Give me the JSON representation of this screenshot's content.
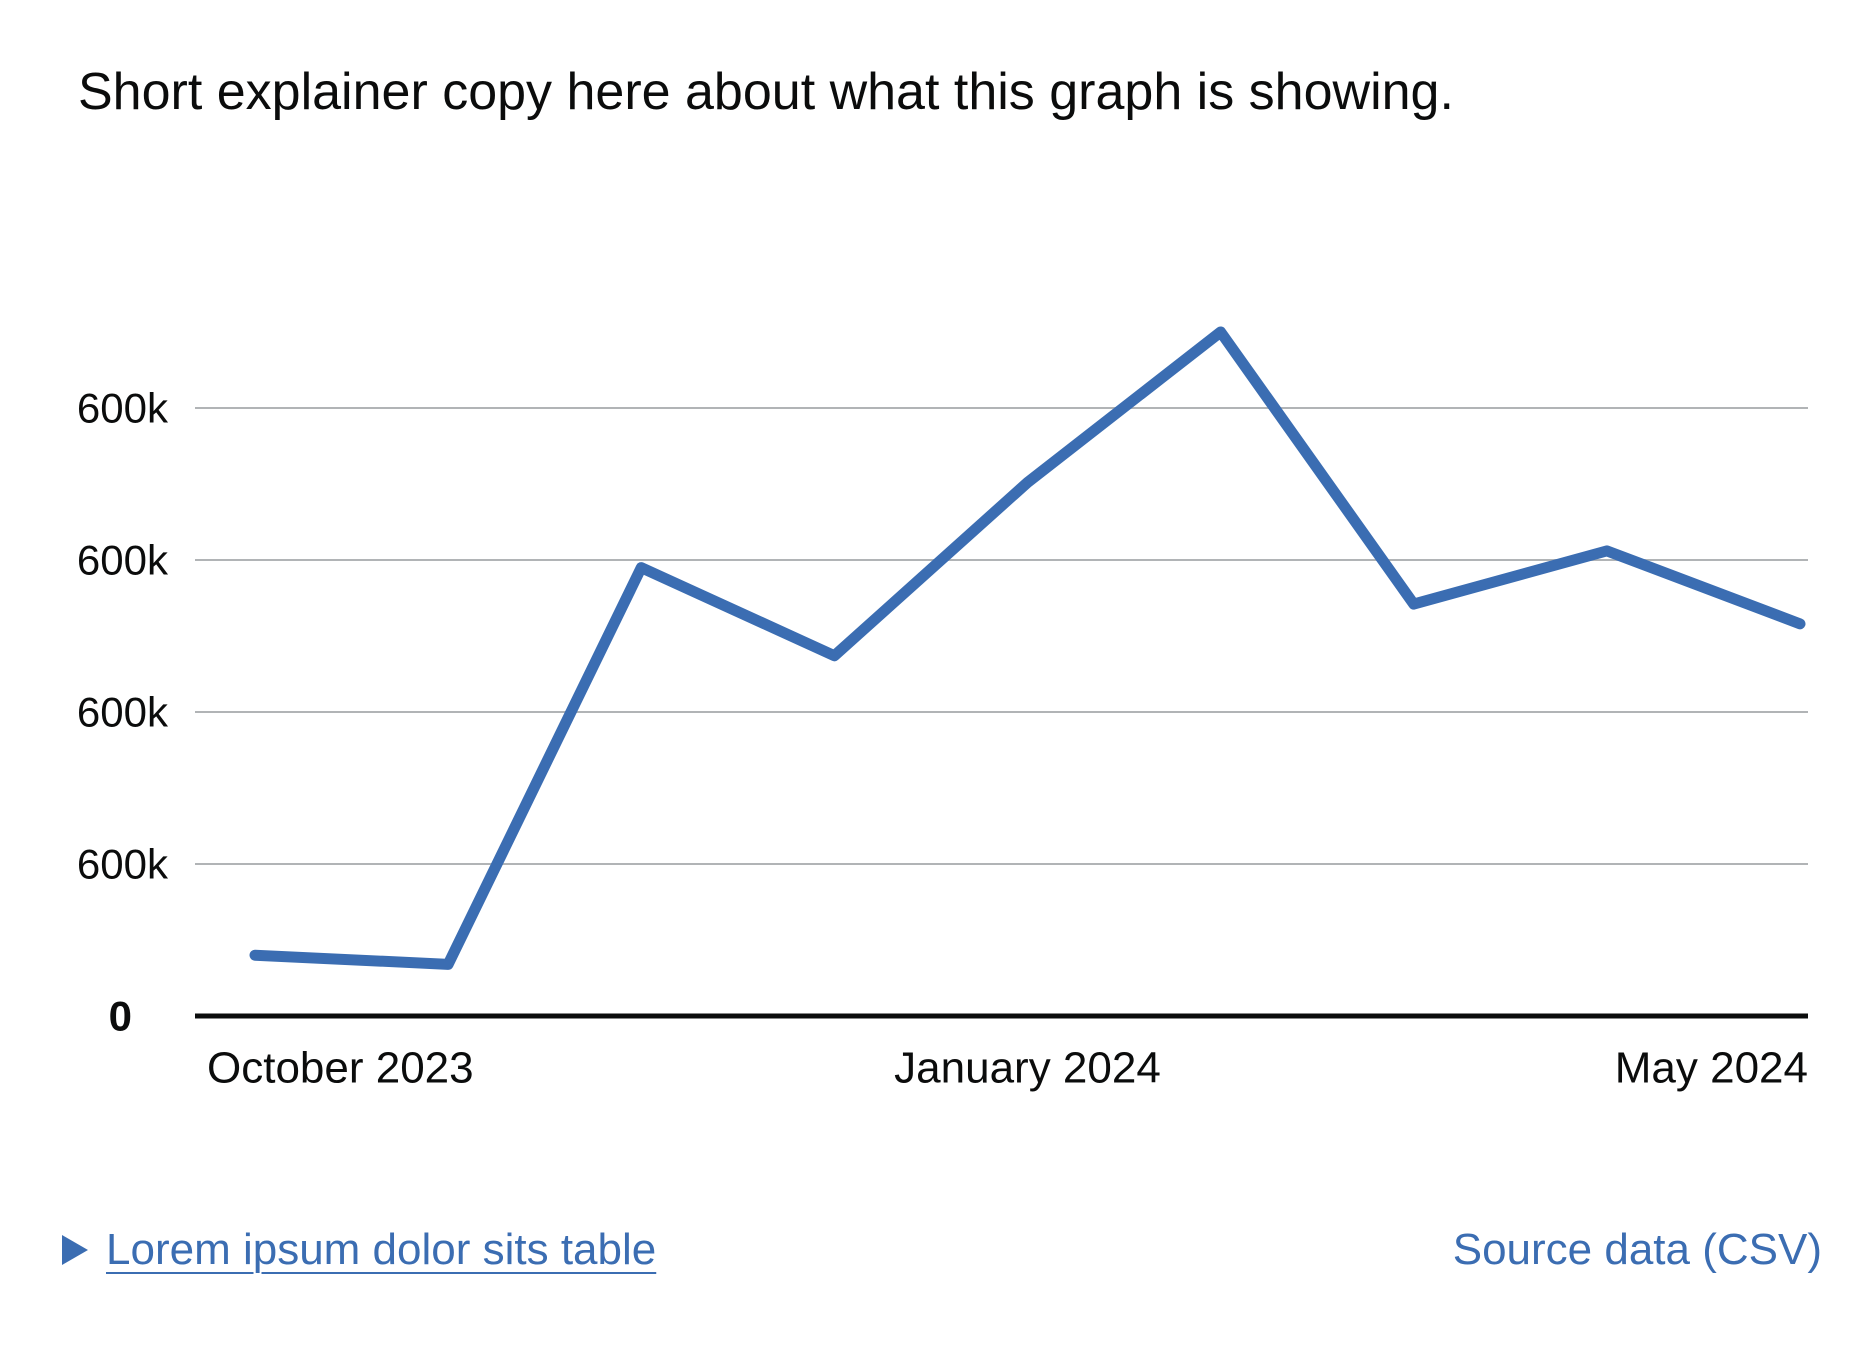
{
  "explainer": "Short explainer copy here about what this graph is showing.",
  "colors": {
    "line": "#3b6db2",
    "link": "#3b6db2",
    "grid": "#b1b4b6",
    "axis": "#0b0c0c",
    "text": "#0b0c0c"
  },
  "chart_data": {
    "type": "line",
    "title": "",
    "xlabel": "",
    "ylabel": "",
    "x": [
      "2023-09",
      "2023-10",
      "2023-11",
      "2023-12",
      "2024-01",
      "2024-02",
      "2024-03",
      "2024-04",
      "2024-05"
    ],
    "x_tick_labels": [
      {
        "at": "2023-10",
        "label": "October 2023"
      },
      {
        "at": "2024-01",
        "label": "January 2024"
      },
      {
        "at": "2024-05",
        "label": "May 2024"
      }
    ],
    "y_ticks": [
      {
        "value": 0,
        "label": "0"
      },
      {
        "value": 1,
        "label": "600k"
      },
      {
        "value": 2,
        "label": "600k"
      },
      {
        "value": 3,
        "label": "600k"
      },
      {
        "value": 4,
        "label": "600k"
      }
    ],
    "ylim": [
      0,
      4.3
    ],
    "grid": true,
    "series": [
      {
        "values": [
          0.4,
          0.34,
          2.95,
          2.37,
          3.51,
          4.5,
          2.71,
          3.06,
          2.58
        ]
      }
    ]
  },
  "footer": {
    "table_link": "Lorem ipsum dolor sits table",
    "source_link": "Source data (CSV)"
  }
}
